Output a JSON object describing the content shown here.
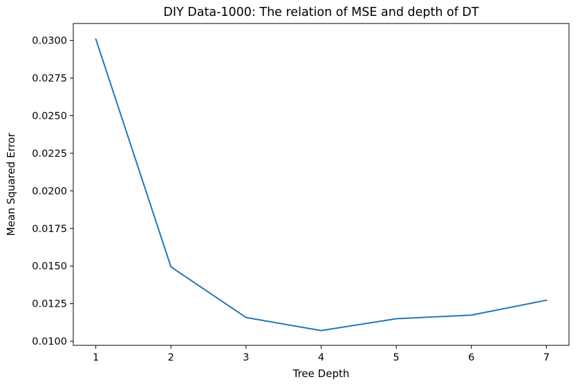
{
  "chart_data": {
    "type": "line",
    "title": "DIY Data-1000: The relation of MSE and depth of DT",
    "xlabel": "Tree Depth",
    "ylabel": "Mean Squared Error",
    "x": [
      1,
      2,
      3,
      4,
      5,
      6,
      7
    ],
    "xticks": [
      "1",
      "2",
      "3",
      "4",
      "5",
      "6",
      "7"
    ],
    "yticks": [
      "0.0100",
      "0.0125",
      "0.0150",
      "0.0175",
      "0.0200",
      "0.0225",
      "0.0250",
      "0.0275",
      "0.0300"
    ],
    "ytick_values": [
      0.01,
      0.0125,
      0.015,
      0.0175,
      0.02,
      0.0225,
      0.025,
      0.0275,
      0.03
    ],
    "xlim": [
      0.7,
      7.3
    ],
    "ylim": [
      0.00973,
      0.03113
    ],
    "grid": false,
    "series": [
      {
        "name": "MSE",
        "color": "#1f77b4",
        "values": [
          0.0301,
          0.01495,
          0.01158,
          0.01071,
          0.0115,
          0.01174,
          0.01273
        ]
      }
    ]
  }
}
